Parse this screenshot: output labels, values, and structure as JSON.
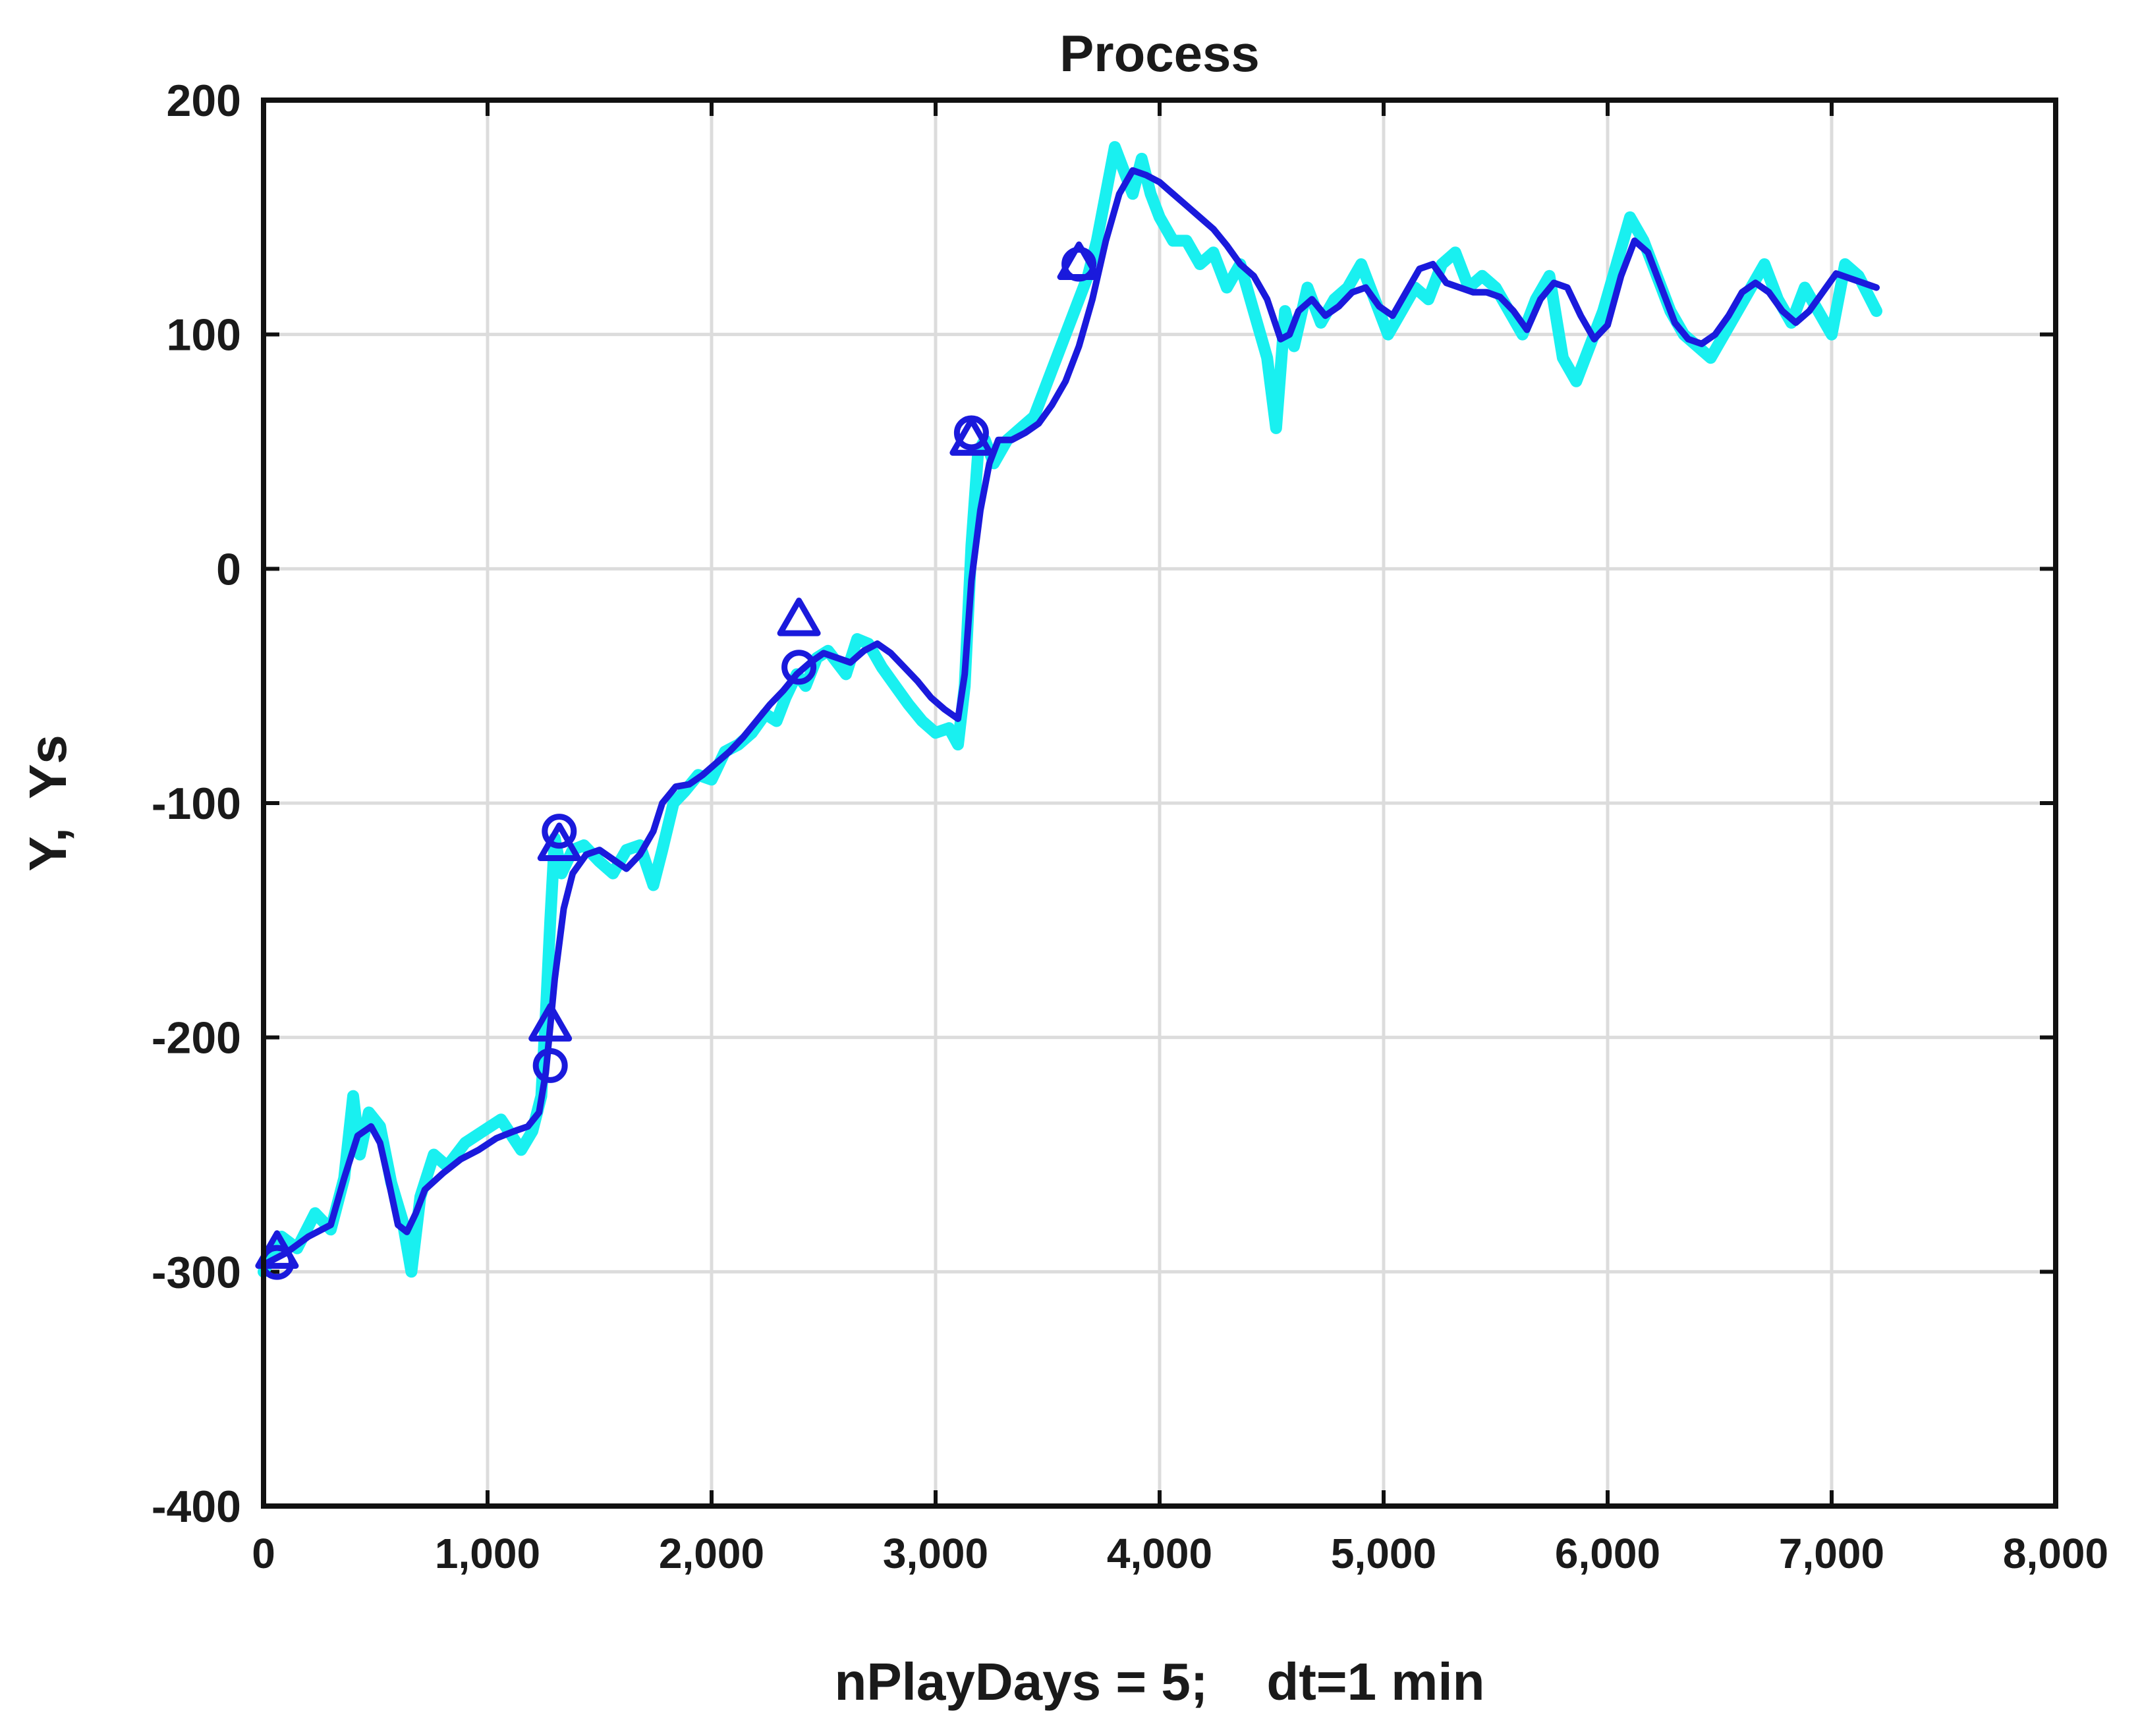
{
  "chart_data": {
    "type": "line",
    "title": "Process",
    "xlabel": "nPlayDays = 5;    dt=1 min",
    "ylabel": "Y,  Ys",
    "xlim": [
      0,
      8000
    ],
    "ylim": [
      -400,
      200
    ],
    "xticks": [
      0,
      1000,
      2000,
      3000,
      4000,
      5000,
      6000,
      7000,
      8000
    ],
    "xtick_labels": [
      "0",
      "1,000",
      "2,000",
      "3,000",
      "4,000",
      "5,000",
      "6,000",
      "7,000",
      "8,000"
    ],
    "yticks": [
      -400,
      -300,
      -200,
      -100,
      0,
      100,
      200
    ],
    "ytick_labels": [
      "-400",
      "-300",
      "-200",
      "-100",
      "0",
      "100",
      "200"
    ],
    "grid": true,
    "legend": false,
    "colors": {
      "raw": "#19f0f0",
      "smoothed": "#1a1adc",
      "markers": "#1a1adc"
    },
    "series": [
      {
        "role": "raw",
        "x": [
          0,
          80,
          150,
          230,
          300,
          360,
          400,
          430,
          470,
          520,
          570,
          620,
          660,
          700,
          760,
          820,
          900,
          980,
          1060,
          1150,
          1200,
          1240,
          1260,
          1280,
          1300,
          1330,
          1380,
          1430,
          1500,
          1560,
          1620,
          1680,
          1740,
          1780,
          1830,
          1880,
          1940,
          2000,
          2060,
          2120,
          2180,
          2240,
          2290,
          2330,
          2380,
          2420,
          2470,
          2520,
          2560,
          2600,
          2650,
          2700,
          2760,
          2820,
          2880,
          2940,
          3000,
          3060,
          3100,
          3130,
          3160,
          3190,
          3220,
          3260,
          3320,
          3380,
          3440,
          3500,
          3560,
          3620,
          3680,
          3720,
          3760,
          3800,
          3840,
          3880,
          3920,
          3960,
          4000,
          4060,
          4120,
          4180,
          4240,
          4300,
          4360,
          4420,
          4480,
          4520,
          4560,
          4600,
          4660,
          4720,
          4780,
          4840,
          4900,
          4960,
          5020,
          5080,
          5140,
          5200,
          5260,
          5320,
          5380,
          5440,
          5500,
          5560,
          5620,
          5680,
          5740,
          5800,
          5860,
          5920,
          5980,
          6040,
          6100,
          6160,
          6220,
          6280,
          6340,
          6400,
          6460,
          6520,
          6580,
          6640,
          6700,
          6760,
          6820,
          6880,
          6940,
          7000,
          7060,
          7120,
          7200
        ],
        "y": [
          -300,
          -285,
          -290,
          -275,
          -282,
          -260,
          -225,
          -250,
          -232,
          -238,
          -262,
          -278,
          -300,
          -268,
          -250,
          -255,
          -245,
          -240,
          -235,
          -248,
          -240,
          -225,
          -190,
          -150,
          -115,
          -130,
          -120,
          -118,
          -125,
          -130,
          -120,
          -118,
          -135,
          -120,
          -100,
          -95,
          -88,
          -90,
          -78,
          -75,
          -70,
          -62,
          -65,
          -55,
          -45,
          -50,
          -38,
          -35,
          -40,
          -45,
          -30,
          -32,
          -42,
          -50,
          -58,
          -65,
          -70,
          -68,
          -75,
          -50,
          10,
          50,
          55,
          45,
          55,
          60,
          65,
          80,
          95,
          110,
          125,
          140,
          160,
          180,
          170,
          160,
          175,
          160,
          150,
          140,
          140,
          130,
          135,
          120,
          130,
          110,
          90,
          60,
          110,
          95,
          120,
          105,
          115,
          120,
          130,
          115,
          100,
          110,
          120,
          115,
          130,
          135,
          120,
          125,
          120,
          110,
          100,
          115,
          125,
          90,
          80,
          95,
          110,
          130,
          150,
          140,
          125,
          110,
          100,
          95,
          90,
          100,
          110,
          120,
          130,
          115,
          105,
          120,
          110,
          100,
          130,
          125,
          110
        ]
      },
      {
        "role": "smoothed",
        "x": [
          0,
          100,
          200,
          300,
          360,
          420,
          480,
          520,
          560,
          600,
          640,
          680,
          720,
          800,
          880,
          960,
          1040,
          1120,
          1180,
          1230,
          1260,
          1300,
          1340,
          1380,
          1440,
          1500,
          1560,
          1620,
          1680,
          1740,
          1780,
          1840,
          1900,
          1960,
          2020,
          2080,
          2140,
          2200,
          2260,
          2320,
          2380,
          2440,
          2500,
          2560,
          2620,
          2680,
          2740,
          2800,
          2860,
          2920,
          2980,
          3040,
          3100,
          3130,
          3160,
          3200,
          3240,
          3280,
          3340,
          3400,
          3460,
          3520,
          3580,
          3640,
          3700,
          3760,
          3820,
          3880,
          3940,
          4000,
          4060,
          4120,
          4180,
          4240,
          4300,
          4360,
          4420,
          4480,
          4540,
          4580,
          4620,
          4680,
          4740,
          4800,
          4860,
          4920,
          4980,
          5040,
          5100,
          5160,
          5220,
          5280,
          5340,
          5400,
          5460,
          5520,
          5580,
          5640,
          5700,
          5760,
          5820,
          5880,
          5940,
          6000,
          6060,
          6120,
          6180,
          6240,
          6300,
          6360,
          6420,
          6480,
          6540,
          6600,
          6660,
          6720,
          6780,
          6840,
          6900,
          6960,
          7020,
          7080,
          7140,
          7200
        ],
        "y": [
          -297,
          -292,
          -285,
          -280,
          -260,
          -242,
          -238,
          -245,
          -262,
          -280,
          -283,
          -275,
          -265,
          -258,
          -252,
          -248,
          -243,
          -240,
          -238,
          -232,
          -215,
          -175,
          -145,
          -130,
          -122,
          -120,
          -124,
          -128,
          -122,
          -112,
          -100,
          -93,
          -92,
          -88,
          -83,
          -78,
          -72,
          -65,
          -58,
          -52,
          -45,
          -40,
          -36,
          -38,
          -40,
          -35,
          -32,
          -36,
          -42,
          -48,
          -55,
          -60,
          -64,
          -45,
          -5,
          25,
          45,
          55,
          55,
          58,
          62,
          70,
          80,
          95,
          115,
          140,
          160,
          170,
          168,
          165,
          160,
          155,
          150,
          145,
          138,
          130,
          125,
          115,
          98,
          100,
          110,
          115,
          108,
          112,
          118,
          120,
          112,
          108,
          118,
          128,
          130,
          122,
          120,
          118,
          118,
          116,
          110,
          102,
          115,
          122,
          120,
          108,
          98,
          104,
          125,
          140,
          135,
          120,
          105,
          98,
          96,
          100,
          108,
          118,
          122,
          118,
          110,
          105,
          110,
          118,
          126,
          124,
          122,
          120
        ]
      }
    ],
    "markers": [
      {
        "shape": "triangle",
        "x": 60,
        "y": -292
      },
      {
        "shape": "circle",
        "x": 60,
        "y": -296
      },
      {
        "shape": "triangle",
        "x": 1280,
        "y": -195
      },
      {
        "shape": "circle",
        "x": 1280,
        "y": -212
      },
      {
        "shape": "triangle",
        "x": 1320,
        "y": -118
      },
      {
        "shape": "circle",
        "x": 1320,
        "y": -112
      },
      {
        "shape": "triangle",
        "x": 2390,
        "y": -22
      },
      {
        "shape": "circle",
        "x": 2390,
        "y": -42
      },
      {
        "shape": "triangle",
        "x": 3160,
        "y": 55
      },
      {
        "shape": "circle",
        "x": 3160,
        "y": 58
      },
      {
        "shape": "triangle",
        "x": 3640,
        "y": 130
      },
      {
        "shape": "circle",
        "x": 3640,
        "y": 130
      }
    ]
  }
}
